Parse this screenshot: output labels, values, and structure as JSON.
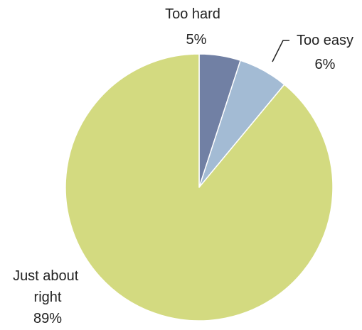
{
  "chart_data": {
    "type": "pie",
    "title": "",
    "slices": [
      {
        "name": "Too hard",
        "value": 5,
        "label": "5%",
        "color": "#7180a4"
      },
      {
        "name": "Too easy",
        "value": 6,
        "label": "6%",
        "color": "#a3bbd4"
      },
      {
        "name": "Just about right",
        "value": 89,
        "label": "89%",
        "color": "#d3da80"
      }
    ]
  }
}
